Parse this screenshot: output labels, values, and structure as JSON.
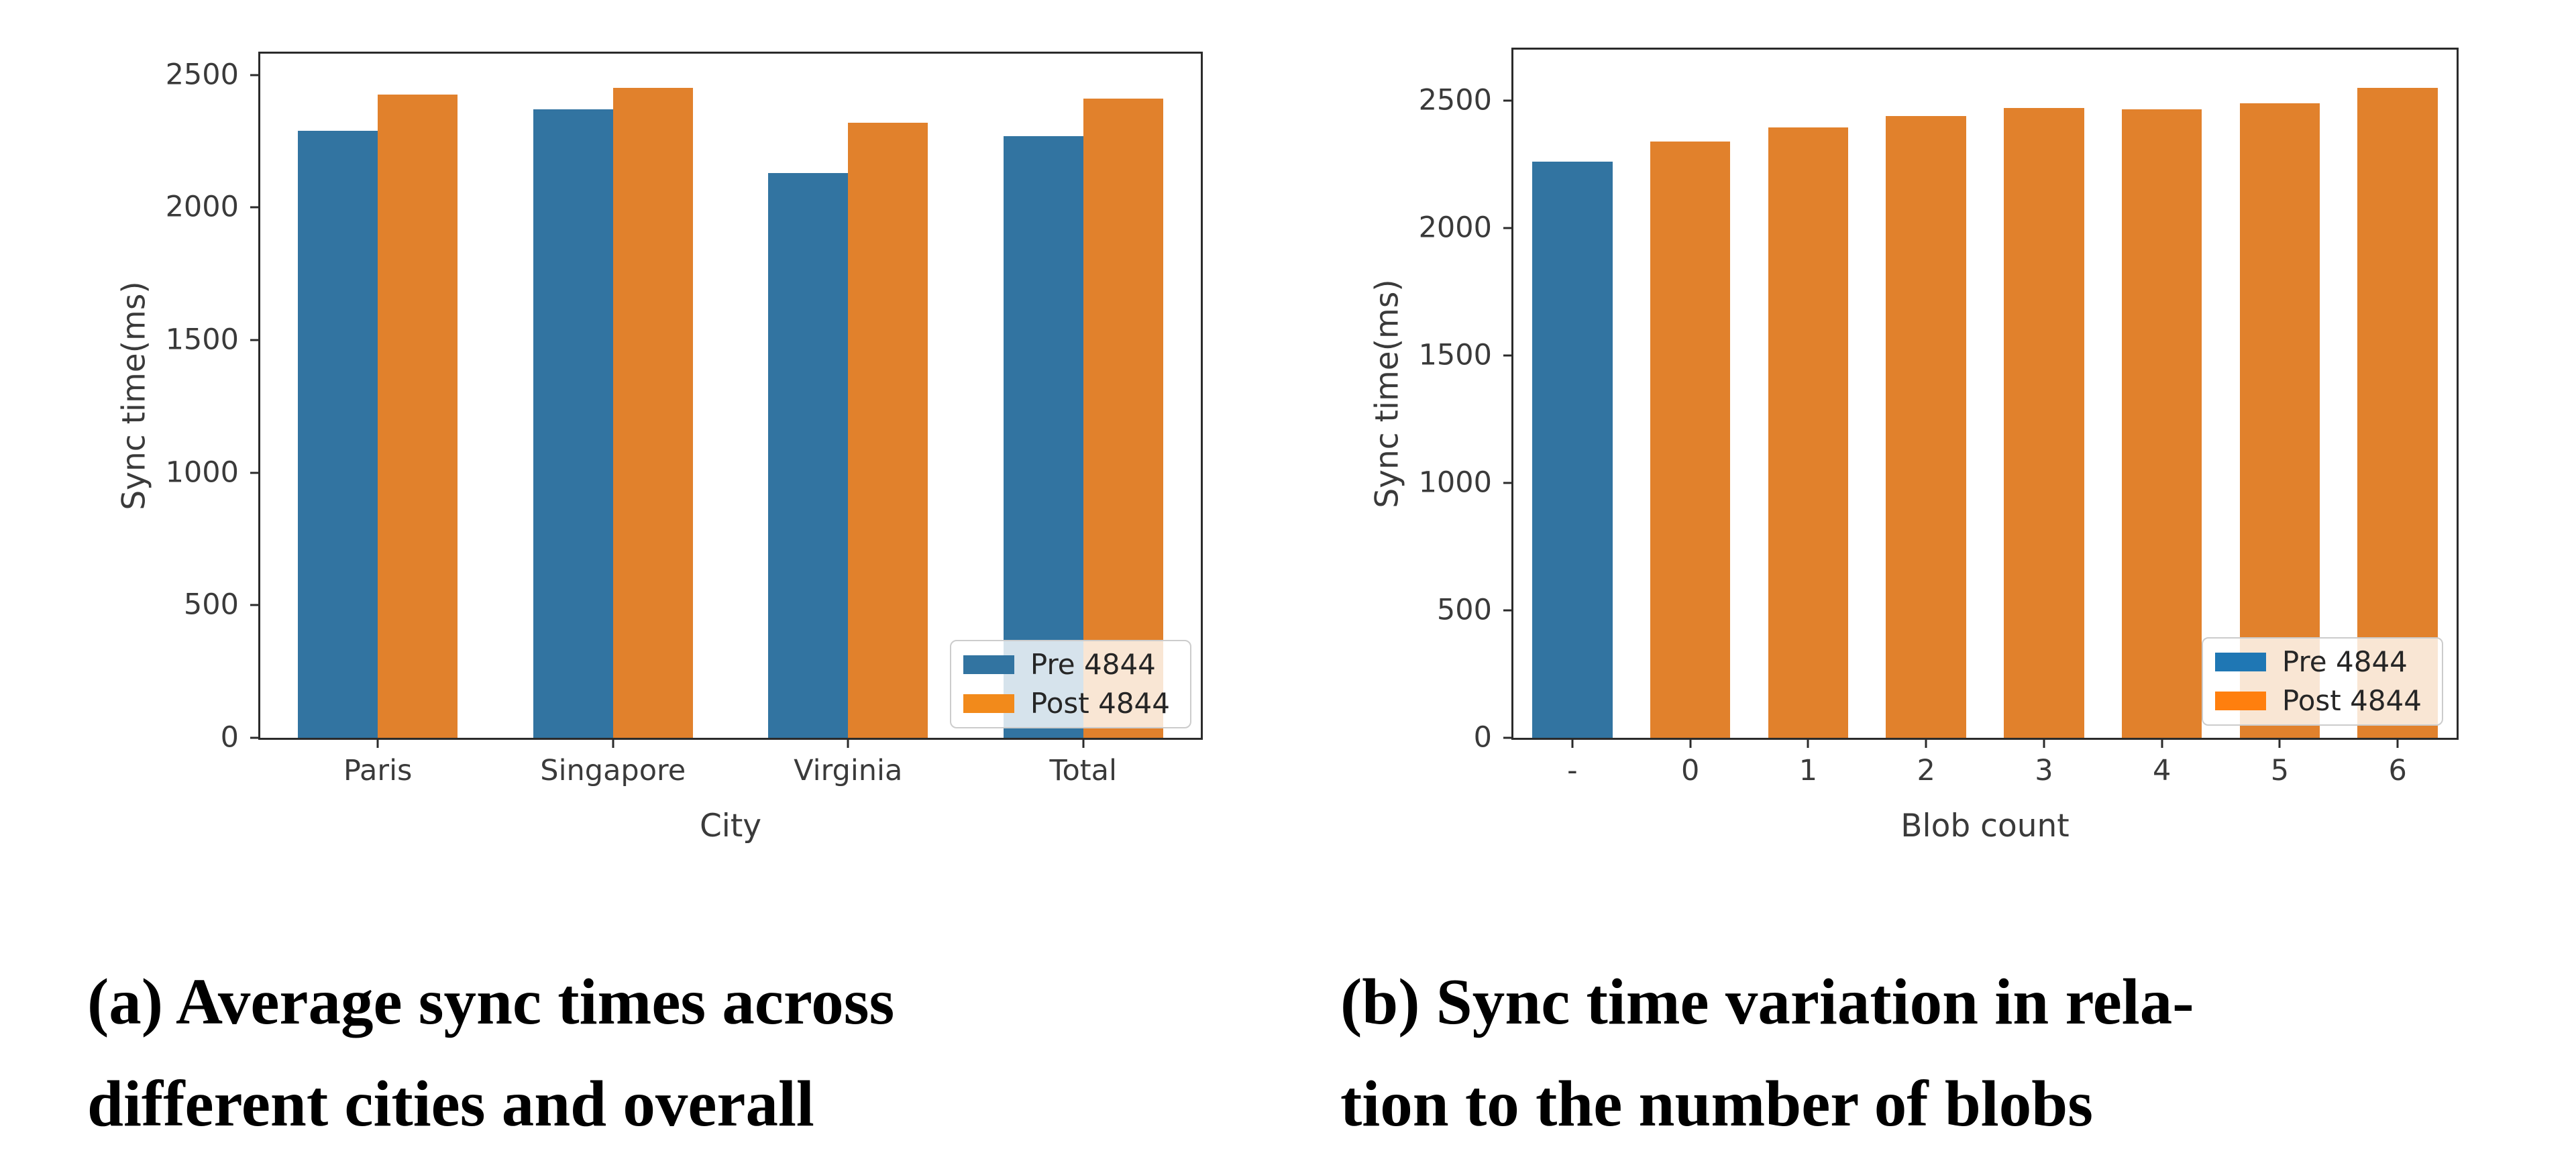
{
  "page": {
    "background": "#ffffff"
  },
  "colors": {
    "bar_pre": "#3274a1",
    "bar_post": "#e1812c",
    "legend_pre_bright": "#1f77b4",
    "legend_post_bright": "#ff7f0e",
    "spine": "#2b2b2b",
    "tick_text": "#3a3a3a"
  },
  "chart_data": [
    {
      "id": "a",
      "type": "bar",
      "mode": "grouped",
      "title": "",
      "categories": [
        "Paris",
        "Singapore",
        "Virginia",
        "Total"
      ],
      "series": [
        {
          "name": "Pre 4844",
          "color": "#3274a1",
          "values": [
            2290,
            2370,
            2130,
            2270
          ]
        },
        {
          "name": "Post 4844",
          "color": "#e1812c",
          "values": [
            2425,
            2450,
            2320,
            2410
          ]
        }
      ],
      "xlabel": "City",
      "ylabel": "Sync time(ms)",
      "ylim": [
        0,
        2580
      ],
      "yticks": [
        0,
        500,
        1000,
        1500,
        2000,
        2500
      ],
      "grid": false,
      "legend_position": "lower right",
      "legend": [
        {
          "label": "Pre 4844",
          "color": "#3274a1"
        },
        {
          "label": "Post 4844",
          "color": "#f28a1b"
        }
      ]
    },
    {
      "id": "b",
      "type": "bar",
      "mode": "single",
      "title": "",
      "categories": [
        "-",
        "0",
        "1",
        "2",
        "3",
        "4",
        "5",
        "6"
      ],
      "values": [
        2260,
        2340,
        2395,
        2440,
        2470,
        2465,
        2490,
        2550
      ],
      "bar_series": [
        "Pre 4844",
        "Post 4844",
        "Post 4844",
        "Post 4844",
        "Post 4844",
        "Post 4844",
        "Post 4844",
        "Post 4844"
      ],
      "bar_colors": [
        "#3274a1",
        "#e1812c",
        "#e1812c",
        "#e1812c",
        "#e1812c",
        "#e1812c",
        "#e1812c",
        "#e1812c"
      ],
      "xlabel": "Blob count",
      "ylabel": "Sync time(ms)",
      "ylim": [
        0,
        2700
      ],
      "yticks": [
        0,
        500,
        1000,
        1500,
        2000,
        2500
      ],
      "grid": false,
      "legend_position": "lower right",
      "legend": [
        {
          "label": "Pre 4844",
          "color": "#1f77b4"
        },
        {
          "label": "Post 4844",
          "color": "#ff7f0e"
        }
      ]
    }
  ],
  "captions": [
    {
      "line1": "(a) Average sync times across",
      "line2": "different cities and overall"
    },
    {
      "line1": "(b) Sync time variation in rela-",
      "line2": "tion to the number of blobs"
    }
  ]
}
